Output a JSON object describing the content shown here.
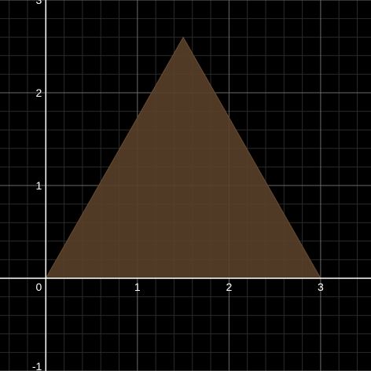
{
  "app": {
    "name": "Desmos-style graphing calculator (dark theme)"
  },
  "graph": {
    "x_range": [
      -0.5,
      3.55
    ],
    "y_range": [
      -1.0,
      3.0
    ],
    "major_step": 1,
    "minor_step": 0.2,
    "colors": {
      "background": "#000000",
      "minor_grid": "#2a2a2a",
      "major_grid": "#6a6a6a",
      "axes": "#ffffff",
      "polygon_fill": "#59402a",
      "polygon_stroke": "#6a4c2f"
    },
    "x_tick_labels": [
      {
        "value": 0,
        "text": "0"
      },
      {
        "value": 1,
        "text": "1"
      },
      {
        "value": 2,
        "text": "2"
      },
      {
        "value": 3,
        "text": "3"
      }
    ],
    "y_tick_labels": [
      {
        "value": -1,
        "text": "-1"
      },
      {
        "value": 1,
        "text": "1"
      },
      {
        "value": 2,
        "text": "2"
      },
      {
        "value": 3,
        "text": "3"
      }
    ]
  },
  "shapes": [
    {
      "type": "polygon",
      "name": "triangle",
      "vertices": [
        {
          "x": 0,
          "y": 0
        },
        {
          "x": 1.5,
          "y": 2.598
        },
        {
          "x": 3,
          "y": 0
        }
      ]
    }
  ]
}
